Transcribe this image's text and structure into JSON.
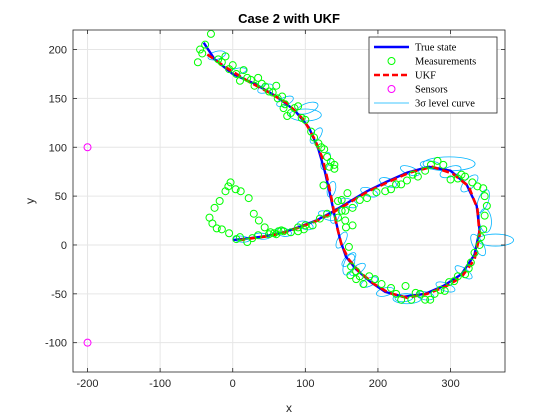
{
  "chart_data": {
    "type": "line",
    "title": "Case 2 with UKF",
    "xlabel": "x",
    "ylabel": "y",
    "xlim": [
      -220,
      375
    ],
    "ylim": [
      -130,
      220
    ],
    "xticks": [
      -200,
      -100,
      0,
      100,
      200,
      300
    ],
    "yticks": [
      -100,
      -50,
      0,
      50,
      100,
      150,
      200
    ],
    "grid": true,
    "legend_position": "top-right",
    "legend": [
      "True state",
      "Measurements",
      "UKF",
      "Sensors",
      "3σ level curve"
    ],
    "colors": {
      "true_state": "#0000ff",
      "measurements": "#00ff00",
      "ukf": "#ff0000",
      "sensors": "#ff00ff",
      "level_curve": "#00b4ff",
      "grid": "#e6e6e6",
      "axes": "#262626"
    },
    "series": [
      {
        "name": "True state",
        "style": "solid",
        "points": [
          [
            -40,
            207
          ],
          [
            -25,
            190
          ],
          [
            0,
            175
          ],
          [
            30,
            165
          ],
          [
            60,
            152
          ],
          [
            85,
            138
          ],
          [
            105,
            120
          ],
          [
            118,
            98
          ],
          [
            127,
            75
          ],
          [
            134,
            52
          ],
          [
            141,
            28
          ],
          [
            148,
            5
          ],
          [
            156,
            -12
          ],
          [
            170,
            -25
          ],
          [
            190,
            -38
          ],
          [
            210,
            -48
          ],
          [
            235,
            -53
          ],
          [
            265,
            -50
          ],
          [
            290,
            -42
          ],
          [
            315,
            -30
          ],
          [
            333,
            -10
          ],
          [
            340,
            15
          ],
          [
            336,
            40
          ],
          [
            322,
            62
          ],
          [
            300,
            76
          ],
          [
            270,
            80
          ],
          [
            240,
            74
          ],
          [
            210,
            64
          ],
          [
            185,
            55
          ],
          [
            160,
            44
          ],
          [
            140,
            35
          ],
          [
            115,
            25
          ],
          [
            90,
            18
          ],
          [
            70,
            13
          ],
          [
            45,
            9
          ],
          [
            25,
            7
          ],
          [
            0,
            5
          ]
        ]
      },
      {
        "name": "UKF",
        "style": "dashed",
        "points": [
          [
            -35,
            195
          ],
          [
            -10,
            182
          ],
          [
            20,
            168
          ],
          [
            50,
            156
          ],
          [
            75,
            145
          ],
          [
            98,
            128
          ],
          [
            113,
            108
          ],
          [
            124,
            88
          ],
          [
            131,
            66
          ],
          [
            137,
            44
          ],
          [
            143,
            20
          ],
          [
            150,
            0
          ],
          [
            160,
            -15
          ],
          [
            175,
            -28
          ],
          [
            195,
            -40
          ],
          [
            215,
            -49
          ],
          [
            240,
            -54
          ],
          [
            268,
            -50
          ],
          [
            292,
            -43
          ],
          [
            315,
            -33
          ],
          [
            333,
            -15
          ],
          [
            340,
            10
          ],
          [
            337,
            37
          ],
          [
            325,
            60
          ],
          [
            303,
            73
          ],
          [
            275,
            80
          ],
          [
            243,
            74
          ],
          [
            213,
            64
          ],
          [
            187,
            55
          ],
          [
            162,
            44
          ],
          [
            142,
            35
          ],
          [
            117,
            25
          ],
          [
            92,
            18
          ],
          [
            72,
            13
          ],
          [
            48,
            9
          ],
          [
            28,
            7
          ],
          [
            10,
            5
          ]
        ]
      }
    ],
    "measurements": [
      [
        -30,
        216
      ],
      [
        -20,
        190
      ],
      [
        -15,
        187
      ],
      [
        -10,
        193
      ],
      [
        -5,
        180
      ],
      [
        0,
        184
      ],
      [
        5,
        175
      ],
      [
        10,
        168
      ],
      [
        15,
        179
      ],
      [
        20,
        171
      ],
      [
        25,
        169
      ],
      [
        30,
        163
      ],
      [
        35,
        171
      ],
      [
        40,
        165
      ],
      [
        45,
        162
      ],
      [
        50,
        157
      ],
      [
        55,
        156
      ],
      [
        60,
        163
      ],
      [
        62,
        150
      ],
      [
        68,
        152
      ],
      [
        70,
        140
      ],
      [
        72,
        144
      ],
      [
        75,
        132
      ],
      [
        80,
        135
      ],
      [
        85,
        140
      ],
      [
        90,
        142
      ],
      [
        95,
        130
      ],
      [
        100,
        128
      ],
      [
        108,
        116
      ],
      [
        112,
        110
      ],
      [
        118,
        104
      ],
      [
        122,
        100
      ],
      [
        126,
        98
      ],
      [
        130,
        90
      ],
      [
        135,
        85
      ],
      [
        140,
        82
      ],
      [
        145,
        45
      ],
      [
        150,
        35
      ],
      [
        155,
        25
      ],
      [
        156,
        18
      ],
      [
        160,
        -2
      ],
      [
        163,
        -22
      ],
      [
        170,
        -27
      ],
      [
        175,
        -32
      ],
      [
        180,
        -40
      ],
      [
        188,
        -32
      ],
      [
        196,
        -35
      ],
      [
        205,
        -40
      ],
      [
        218,
        -44
      ],
      [
        225,
        -50
      ],
      [
        232,
        -56
      ],
      [
        238,
        -42
      ],
      [
        246,
        -56
      ],
      [
        252,
        -49
      ],
      [
        258,
        -50
      ],
      [
        265,
        -56
      ],
      [
        272,
        -56
      ],
      [
        278,
        -50
      ],
      [
        286,
        -46
      ],
      [
        292,
        -47
      ],
      [
        298,
        -38
      ],
      [
        305,
        -37
      ],
      [
        310,
        -32
      ],
      [
        320,
        -30
      ],
      [
        325,
        -24
      ],
      [
        328,
        -18
      ],
      [
        333,
        -8
      ],
      [
        340,
        0
      ],
      [
        342,
        8
      ],
      [
        345,
        16
      ],
      [
        347,
        30
      ],
      [
        350,
        40
      ],
      [
        347,
        50
      ],
      [
        345,
        58
      ],
      [
        337,
        60
      ],
      [
        330,
        64
      ],
      [
        320,
        70
      ],
      [
        315,
        72
      ],
      [
        310,
        68
      ],
      [
        300,
        67
      ],
      [
        290,
        82
      ],
      [
        282,
        86
      ],
      [
        273,
        82
      ],
      [
        265,
        76
      ],
      [
        255,
        70
      ],
      [
        248,
        72
      ],
      [
        240,
        66
      ],
      [
        232,
        62
      ],
      [
        225,
        62
      ],
      [
        218,
        57
      ],
      [
        210,
        55
      ],
      [
        198,
        54
      ],
      [
        185,
        48
      ],
      [
        175,
        46
      ],
      [
        165,
        38
      ],
      [
        155,
        35
      ],
      [
        145,
        28
      ],
      [
        130,
        32
      ],
      [
        120,
        27
      ],
      [
        110,
        20
      ],
      [
        100,
        20
      ],
      [
        90,
        18
      ],
      [
        80,
        13
      ],
      [
        70,
        14
      ],
      [
        60,
        11
      ],
      [
        50,
        11
      ],
      [
        35,
        10
      ],
      [
        27,
        7
      ],
      [
        20,
        3
      ],
      [
        10,
        8
      ],
      [
        5,
        6
      ],
      [
        -5,
        12
      ],
      [
        -15,
        16
      ],
      [
        -22,
        17
      ],
      [
        -28,
        22
      ],
      [
        -32,
        28
      ],
      [
        -25,
        38
      ],
      [
        -18,
        45
      ],
      [
        -10,
        55
      ],
      [
        -6,
        60
      ],
      [
        -3,
        64
      ],
      [
        4,
        57
      ],
      [
        11,
        55
      ],
      [
        22,
        48
      ],
      [
        29,
        32
      ],
      [
        36,
        25
      ],
      [
        44,
        18
      ],
      [
        52,
        13
      ],
      [
        57,
        12
      ],
      [
        63,
        14
      ],
      [
        67,
        15
      ],
      [
        -38,
        205
      ],
      [
        -42,
        196
      ],
      [
        -45,
        200
      ],
      [
        -48,
        187
      ],
      [
        90,
        14
      ],
      [
        98,
        16
      ],
      [
        125,
        61
      ],
      [
        133,
        80
      ],
      [
        140,
        78
      ],
      [
        150,
        46
      ],
      [
        158,
        53
      ],
      [
        165,
        20
      ],
      [
        162,
        -31
      ],
      [
        170,
        -35
      ]
    ],
    "sensors": [
      [
        -200,
        100
      ],
      [
        -200,
        -100
      ]
    ],
    "ellipses": [
      {
        "cx": -22,
        "cy": 194,
        "rx": 9,
        "ry": 4,
        "angle": -15
      },
      {
        "cx": 8,
        "cy": 178,
        "rx": 8,
        "ry": 3,
        "angle": -10
      },
      {
        "cx": 45,
        "cy": 160,
        "rx": 8,
        "ry": 4,
        "angle": -20
      },
      {
        "cx": 72,
        "cy": 147,
        "rx": 9,
        "ry": 4,
        "angle": -25
      },
      {
        "cx": 103,
        "cy": 140,
        "rx": 11,
        "ry": 5,
        "angle": -20
      },
      {
        "cx": 115,
        "cy": 112,
        "rx": 9,
        "ry": 4,
        "angle": -55
      },
      {
        "cx": 128,
        "cy": 86,
        "rx": 9,
        "ry": 4,
        "angle": -70
      },
      {
        "cx": 136,
        "cy": 57,
        "rx": 8,
        "ry": 4,
        "angle": -75
      },
      {
        "cx": 141,
        "cy": 30,
        "rx": 8,
        "ry": 4,
        "angle": -70
      },
      {
        "cx": 150,
        "cy": 5,
        "rx": 9,
        "ry": 4,
        "angle": -60
      },
      {
        "cx": 160,
        "cy": -15,
        "rx": 9,
        "ry": 4,
        "angle": -45
      },
      {
        "cx": 172,
        "cy": -25,
        "rx": 9,
        "ry": 4,
        "angle": -35
      },
      {
        "cx": 188,
        "cy": -38,
        "rx": 9,
        "ry": 4,
        "angle": -25
      },
      {
        "cx": 210,
        "cy": -48,
        "rx": 9,
        "ry": 4,
        "angle": -15
      },
      {
        "cx": 236,
        "cy": -54,
        "rx": 9,
        "ry": 4,
        "angle": -5
      },
      {
        "cx": 265,
        "cy": -52,
        "rx": 9,
        "ry": 4,
        "angle": 10
      },
      {
        "cx": 293,
        "cy": -43,
        "rx": 10,
        "ry": 4,
        "angle": 20
      },
      {
        "cx": 318,
        "cy": -28,
        "rx": 10,
        "ry": 4,
        "angle": 35
      },
      {
        "cx": 338,
        "cy": 0,
        "rx": 12,
        "ry": 5,
        "angle": 60
      },
      {
        "cx": 348,
        "cy": 25,
        "rx": 12,
        "ry": 6,
        "angle": 85
      },
      {
        "cx": 345,
        "cy": 45,
        "rx": 12,
        "ry": 5,
        "angle": -70
      },
      {
        "cx": 326,
        "cy": 63,
        "rx": 11,
        "ry": 5,
        "angle": -45
      },
      {
        "cx": 300,
        "cy": 75,
        "rx": 11,
        "ry": 5,
        "angle": -20
      },
      {
        "cx": 272,
        "cy": 82,
        "rx": 10,
        "ry": 4,
        "angle": 5
      },
      {
        "cx": 244,
        "cy": 76,
        "rx": 10,
        "ry": 4,
        "angle": 20
      },
      {
        "cx": 214,
        "cy": 64,
        "rx": 9,
        "ry": 4,
        "angle": 20
      },
      {
        "cx": 188,
        "cy": 54,
        "rx": 9,
        "ry": 4,
        "angle": 20
      },
      {
        "cx": 160,
        "cy": 43,
        "rx": 9,
        "ry": 4,
        "angle": 20
      },
      {
        "cx": 130,
        "cy": 30,
        "rx": 9,
        "ry": 4,
        "angle": 20
      },
      {
        "cx": 100,
        "cy": 20,
        "rx": 8,
        "ry": 4,
        "angle": 15
      },
      {
        "cx": 70,
        "cy": 13,
        "rx": 8,
        "ry": 4,
        "angle": 10
      },
      {
        "cx": 40,
        "cy": 9,
        "rx": 8,
        "ry": 3,
        "angle": 5
      },
      {
        "cx": 12,
        "cy": 6,
        "rx": 8,
        "ry": 3,
        "angle": 5
      },
      {
        "cx": 362,
        "cy": 5,
        "rx": 18,
        "ry": 6,
        "angle": 0
      },
      {
        "cx": 298,
        "cy": 83,
        "rx": 26,
        "ry": 7,
        "angle": 0
      },
      {
        "cx": 100,
        "cy": 133,
        "rx": 16,
        "ry": 6,
        "angle": 0
      },
      {
        "cx": 240,
        "cy": -55,
        "rx": 14,
        "ry": 5,
        "angle": 0
      },
      {
        "cx": 160,
        "cy": -20,
        "rx": 11,
        "ry": 5,
        "angle": -70
      }
    ]
  }
}
